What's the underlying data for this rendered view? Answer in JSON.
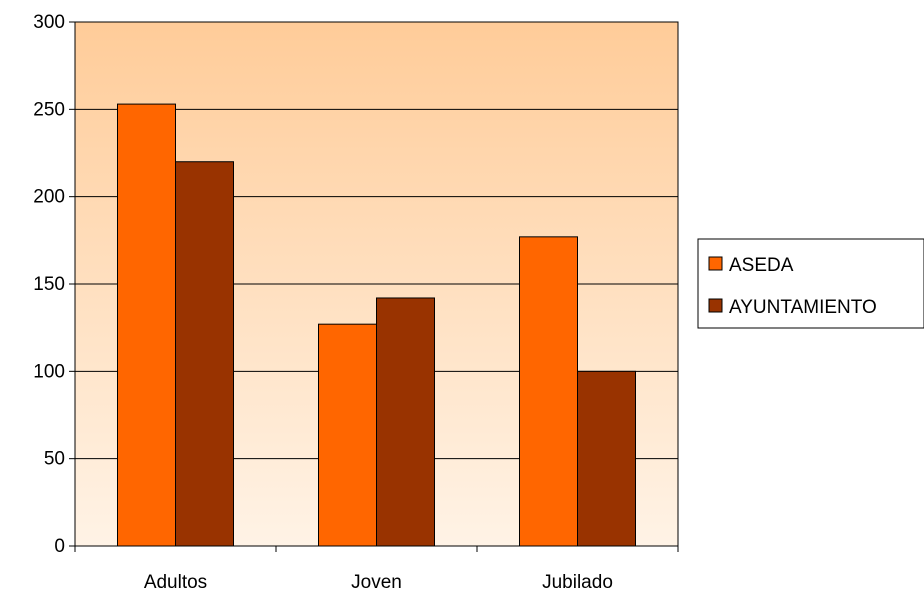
{
  "chart_data": {
    "type": "bar",
    "title": "",
    "xlabel": "",
    "ylabel": "",
    "categories": [
      "Adultos",
      "Joven",
      "Jubilado"
    ],
    "series": [
      {
        "name": "ASEDA",
        "values": [
          253,
          127,
          177
        ],
        "color": "#FF6600"
      },
      {
        "name": "AYUNTAMIENTO",
        "values": [
          220,
          142,
          100
        ],
        "color": "#993300"
      }
    ],
    "ylim": [
      0,
      300
    ],
    "yticks": [
      "0",
      "50",
      "100",
      "150",
      "200",
      "250",
      "300"
    ],
    "grid": true,
    "legend_position": "right",
    "plot_background": {
      "top": "#FFCC99",
      "bottom": "#FFF3E6"
    }
  }
}
